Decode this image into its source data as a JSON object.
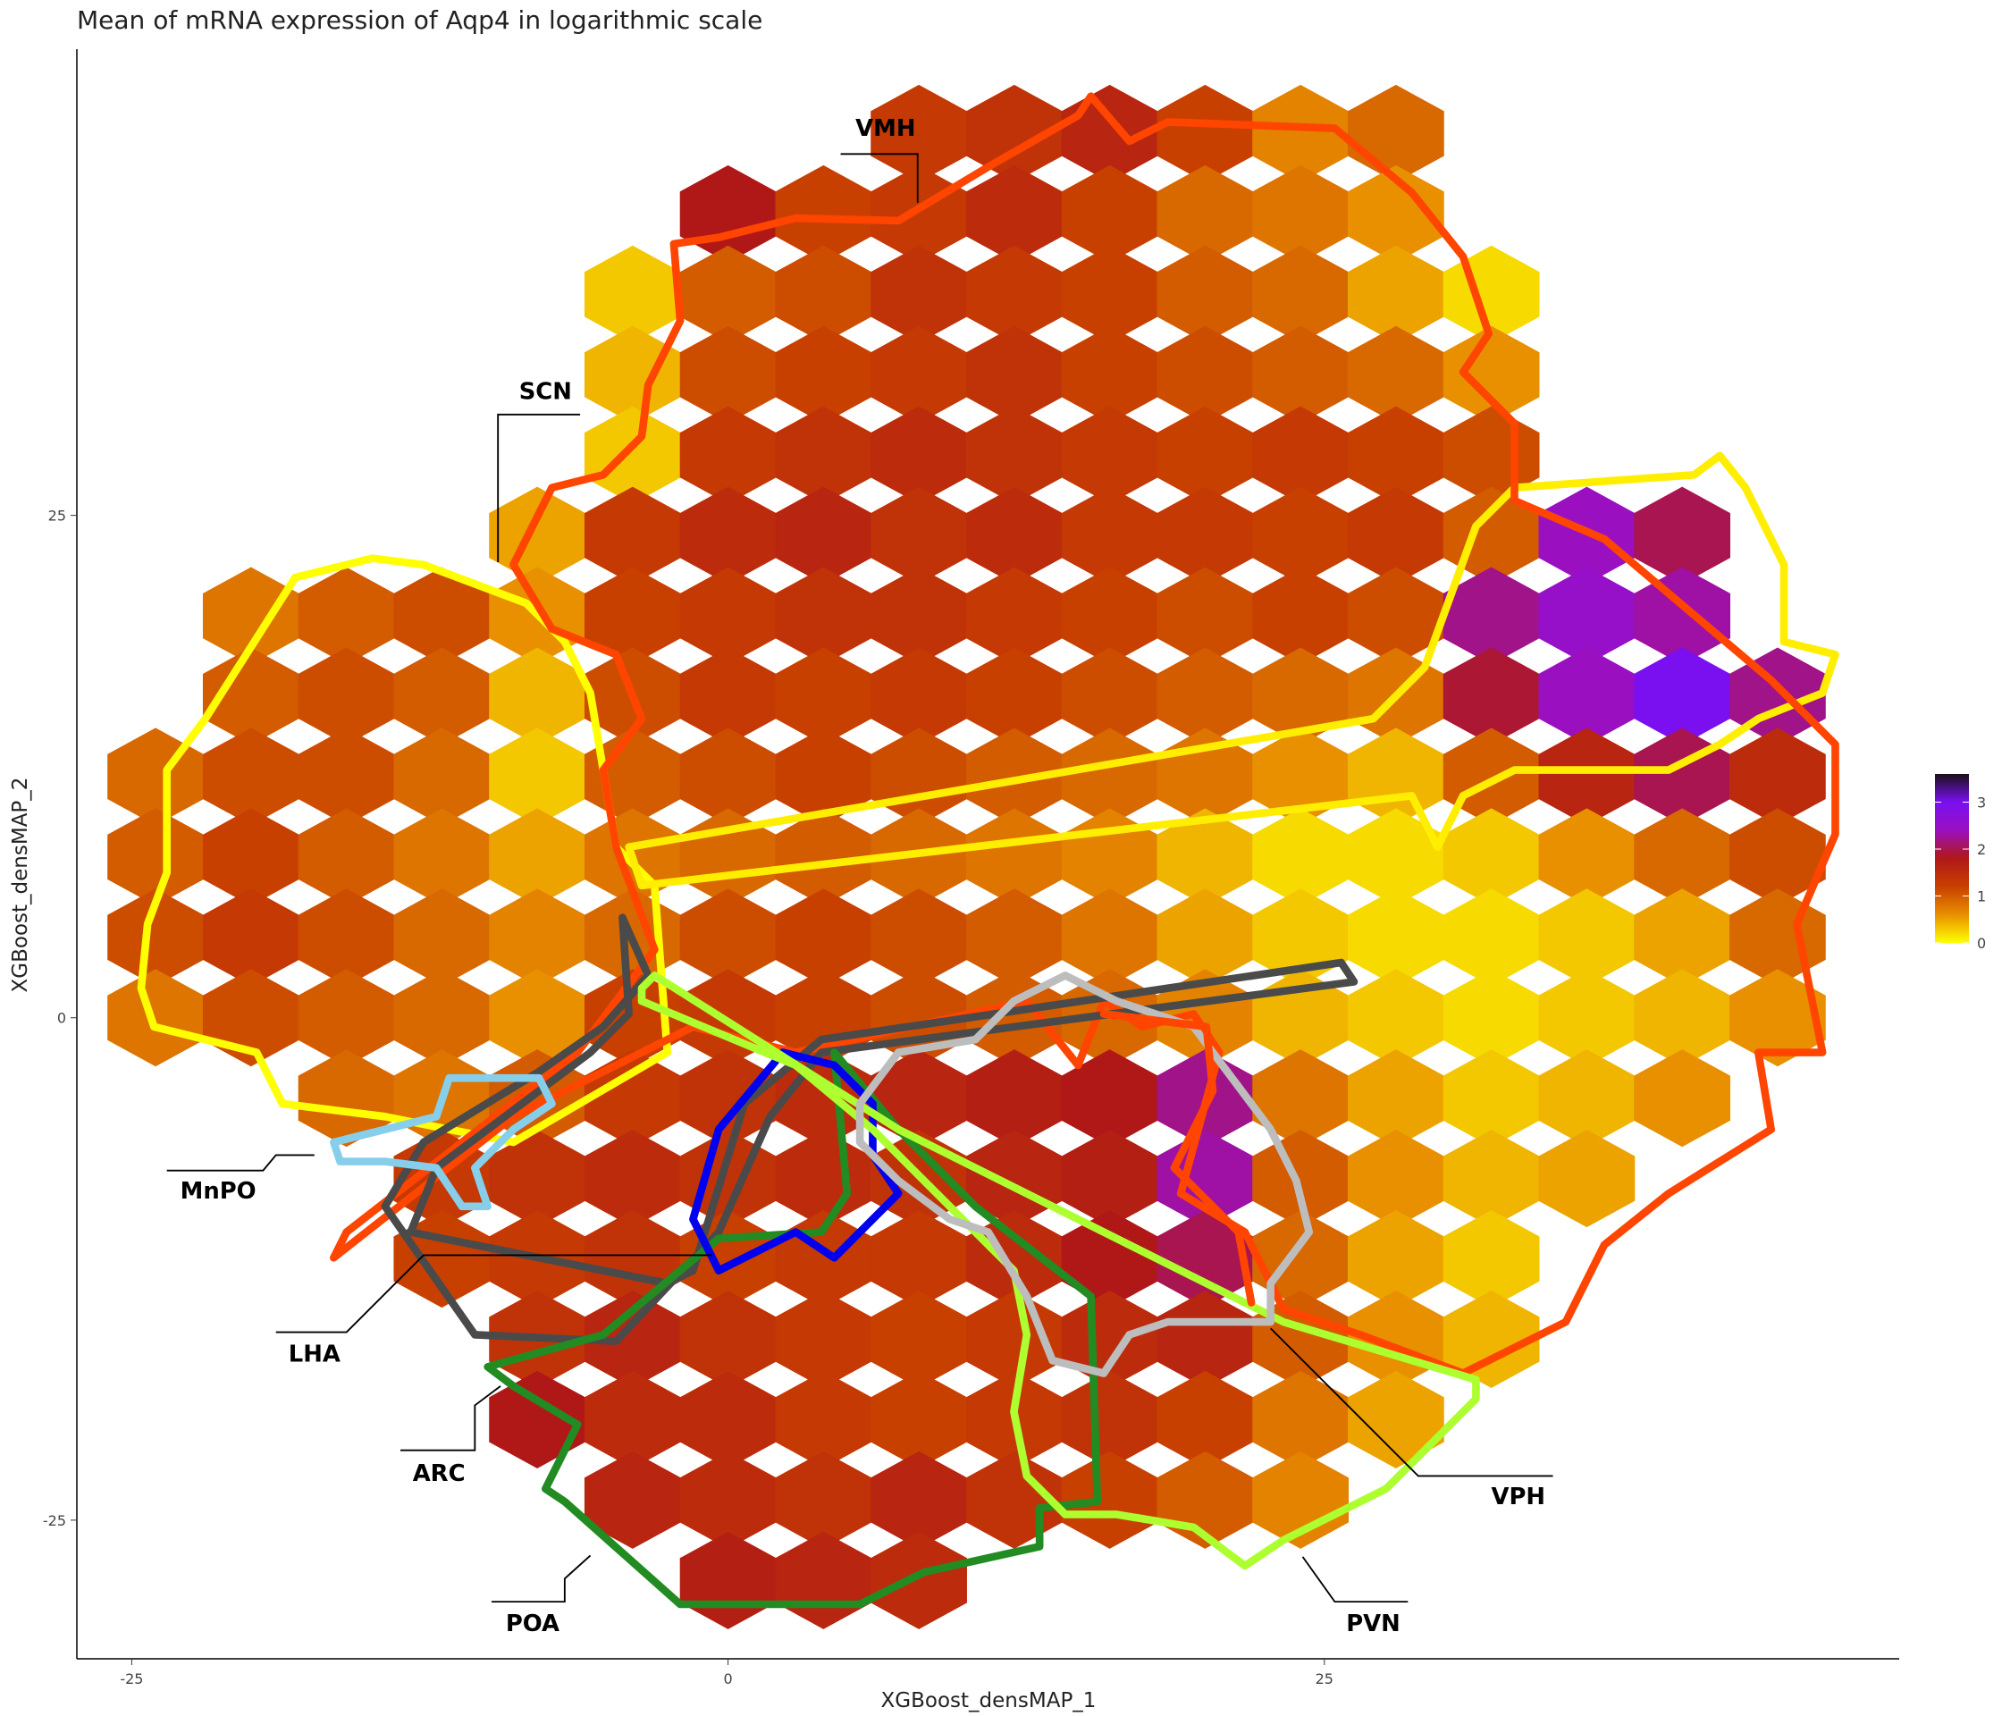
{
  "chart_data": {
    "type": "hexbin",
    "title": "Mean of mRNA expression of Aqp4 in logarithmic scale",
    "x_label": "XGBoost_densMAP_1",
    "y_label": "XGBoost_densMAP_2",
    "xlim": [
      -27.3,
      49.1
    ],
    "ylim": [
      -31.9,
      48.2
    ],
    "xticks": [
      -25,
      0,
      25
    ],
    "yticks": [
      -25,
      0,
      25
    ],
    "clim": [
      0,
      3.6
    ],
    "cticks": [
      0,
      1,
      2,
      3
    ],
    "colors": [
      "#ffff00",
      "#e89000",
      "#c84000",
      "#b01818",
      "#9a10c0",
      "#7a10f0",
      "#1a1018"
    ],
    "x": [
      -24,
      -20,
      -16,
      -12,
      -8,
      -4,
      0,
      4,
      8,
      12,
      16,
      20,
      24,
      28,
      32,
      36,
      40,
      44
    ],
    "y": [
      44,
      40,
      36,
      32,
      28,
      24,
      20,
      16,
      12,
      8,
      4,
      0,
      -4,
      -8,
      -12,
      -16,
      -20,
      -24,
      -28
    ],
    "values": [
      [
        null,
        null,
        null,
        null,
        null,
        null,
        null,
        null,
        1.3,
        1.4,
        1.6,
        1.2,
        0.7,
        0.9,
        null,
        null,
        null,
        null
      ],
      [
        null,
        null,
        null,
        null,
        null,
        null,
        1.8,
        1.2,
        1.3,
        1.5,
        1.2,
        0.9,
        0.8,
        0.6,
        null,
        null,
        null,
        null
      ],
      [
        null,
        null,
        null,
        null,
        null,
        0.3,
        1.0,
        1.1,
        1.4,
        1.3,
        1.2,
        1.0,
        0.9,
        0.5,
        0.2,
        null,
        null,
        null
      ],
      [
        null,
        null,
        null,
        null,
        null,
        0.4,
        1.1,
        1.2,
        1.3,
        1.4,
        1.2,
        1.1,
        1.0,
        0.9,
        0.6,
        null,
        null,
        null
      ],
      [
        null,
        null,
        null,
        null,
        null,
        0.3,
        1.3,
        1.4,
        1.5,
        1.4,
        1.3,
        1.2,
        1.3,
        1.2,
        1.1,
        null,
        null,
        null
      ],
      [
        null,
        null,
        null,
        null,
        0.5,
        1.3,
        1.5,
        1.6,
        1.4,
        1.5,
        1.3,
        1.3,
        1.2,
        1.3,
        1.0,
        2.4,
        2.0,
        null
      ],
      [
        null,
        0.8,
        1.0,
        1.1,
        0.6,
        1.2,
        1.3,
        1.4,
        1.4,
        1.3,
        1.2,
        1.1,
        1.2,
        1.1,
        2.2,
        2.5,
        2.3,
        null
      ],
      [
        null,
        1.0,
        1.1,
        1.0,
        0.4,
        1.1,
        1.3,
        1.2,
        1.3,
        1.2,
        1.1,
        1.0,
        0.9,
        0.8,
        1.9,
        2.4,
        3.0,
        2.2
      ],
      [
        0.9,
        1.1,
        1.1,
        0.9,
        0.3,
        1.0,
        1.1,
        1.2,
        1.1,
        1.0,
        0.9,
        0.8,
        0.6,
        0.4,
        1.0,
        1.6,
        2.0,
        1.5
      ],
      [
        1.0,
        1.2,
        1.0,
        0.8,
        0.5,
        0.8,
        0.9,
        1.0,
        0.9,
        0.8,
        0.7,
        0.4,
        0.2,
        0.2,
        0.3,
        0.6,
        0.9,
        1.1
      ],
      [
        1.1,
        1.3,
        1.1,
        0.9,
        0.7,
        0.9,
        1.1,
        1.2,
        1.1,
        1.0,
        0.8,
        0.5,
        0.3,
        0.2,
        0.2,
        0.3,
        0.5,
        0.9
      ],
      [
        0.8,
        1.1,
        1.0,
        0.9,
        0.6,
        1.2,
        1.3,
        1.2,
        1.1,
        1.0,
        0.9,
        0.7,
        0.4,
        0.3,
        0.2,
        0.3,
        0.4,
        0.6
      ],
      [
        null,
        null,
        0.9,
        0.8,
        1.0,
        1.3,
        1.4,
        1.5,
        1.6,
        1.7,
        1.8,
        2.2,
        0.8,
        0.5,
        0.3,
        0.4,
        0.6,
        null
      ],
      [
        null,
        null,
        null,
        1.3,
        1.4,
        1.5,
        1.4,
        1.5,
        1.4,
        1.6,
        1.7,
        2.3,
        1.0,
        0.6,
        0.4,
        0.5,
        null,
        null
      ],
      [
        null,
        null,
        null,
        1.2,
        1.3,
        1.4,
        1.2,
        1.3,
        1.3,
        1.5,
        1.8,
        2.0,
        0.9,
        0.5,
        0.3,
        null,
        null,
        null
      ],
      [
        null,
        null,
        null,
        null,
        1.4,
        1.6,
        1.4,
        1.3,
        1.2,
        1.3,
        1.5,
        1.6,
        1.0,
        0.6,
        0.4,
        null,
        null,
        null
      ],
      [
        null,
        null,
        null,
        null,
        1.8,
        1.5,
        1.5,
        1.3,
        1.2,
        1.3,
        1.4,
        1.2,
        0.8,
        0.5,
        null,
        null,
        null,
        null
      ],
      [
        null,
        null,
        null,
        null,
        null,
        1.6,
        1.5,
        1.4,
        1.6,
        1.4,
        1.2,
        1.0,
        0.7,
        null,
        null,
        null,
        null,
        null
      ],
      [
        null,
        null,
        null,
        null,
        null,
        null,
        1.7,
        1.6,
        1.5,
        null,
        null,
        null,
        null,
        null,
        null,
        null,
        null,
        null
      ]
    ],
    "region_labels": [
      "VMH",
      "SCN",
      "MnPO",
      "LHA",
      "ARC",
      "POA",
      "PVN",
      "VPH"
    ]
  }
}
